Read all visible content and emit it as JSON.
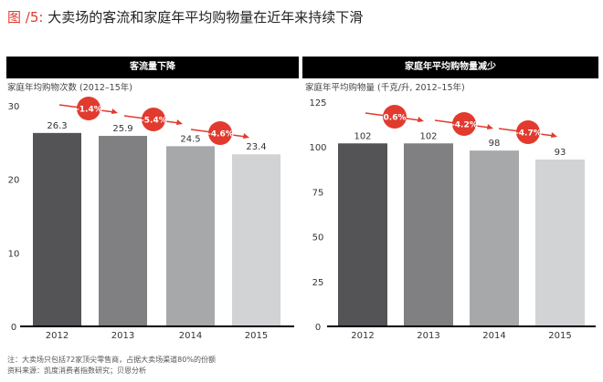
{
  "figure_label": "图 /5:",
  "title": "大卖场的客流和家庭年平均购物量在近年来持续下滑",
  "colors": {
    "accent": "#e23a2e",
    "bars": [
      "#545457",
      "#808083",
      "#a7a8aa",
      "#d2d3d5"
    ]
  },
  "chart_data": [
    {
      "type": "bar",
      "title": "客流量下降",
      "ylabel": "家庭年均购物次数 (2012–15年)",
      "categories": [
        "2012",
        "2013",
        "2014",
        "2015"
      ],
      "values": [
        26.3,
        25.9,
        24.5,
        23.4
      ],
      "data_labels": [
        "26.3",
        "25.9",
        "24.5",
        "23.4"
      ],
      "ylim": [
        0,
        30
      ],
      "yticks": [
        "0",
        "10",
        "20",
        "30"
      ],
      "changes": [
        "–1.4%",
        "–5.4%",
        "–4.6%"
      ],
      "grid": false
    },
    {
      "type": "bar",
      "title": "家庭年平均购物量减少",
      "ylabel": "家庭年平均购物量 (千克/升, 2012–15年)",
      "categories": [
        "2012",
        "2013",
        "2014",
        "2015"
      ],
      "values": [
        102,
        102,
        98,
        93
      ],
      "data_labels": [
        "102",
        "102",
        "98",
        "93"
      ],
      "ylim": [
        0,
        125
      ],
      "yticks": [
        "0",
        "25",
        "50",
        "75",
        "100",
        "125"
      ],
      "changes": [
        "0.6%",
        "–4.2%",
        "–4.7%"
      ],
      "grid": false
    }
  ],
  "notes": [
    "注：大卖场只包括72家顶尖零售商，占据大卖场渠道80%的份额",
    "资料来源：凯度消费者指数研究；贝恩分析"
  ]
}
